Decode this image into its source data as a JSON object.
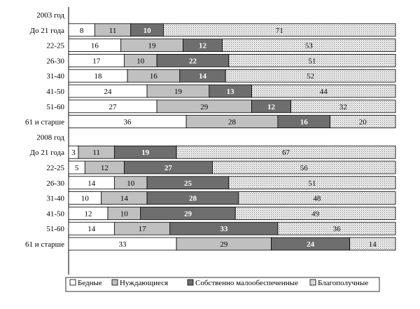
{
  "colors": {
    "poor": "#ffffff",
    "needy": "#c0c0c0",
    "low_income": "#6e6e6e",
    "well_off": "#f0f0f0",
    "border": "#000000"
  },
  "chart_data": {
    "type": "bar",
    "orientation": "horizontal",
    "stacked": "percent",
    "series": [
      {
        "name": "Бедные",
        "color_key": "poor"
      },
      {
        "name": "Нуждающиеся",
        "color_key": "needy"
      },
      {
        "name": "Собственно малообеспеченные",
        "color_key": "low_income"
      },
      {
        "name": "Благополучные",
        "color_key": "well_off"
      }
    ],
    "groups": [
      {
        "label": "2003 год",
        "rows": [
          {
            "category": "До 21 года",
            "values": [
              8,
              11,
              10,
              71
            ]
          },
          {
            "category": "22-25",
            "values": [
              16,
              19,
              12,
              53
            ]
          },
          {
            "category": "26-30",
            "values": [
              17,
              10,
              22,
              51
            ]
          },
          {
            "category": "31-40",
            "values": [
              18,
              16,
              14,
              52
            ]
          },
          {
            "category": "41-50",
            "values": [
              24,
              19,
              13,
              44
            ]
          },
          {
            "category": "51-60",
            "values": [
              27,
              29,
              12,
              32
            ]
          },
          {
            "category": "61 и старше",
            "values": [
              36,
              28,
              16,
              20
            ]
          }
        ]
      },
      {
        "label": "2008 год",
        "rows": [
          {
            "category": "До 21 года",
            "values": [
              3,
              11,
              19,
              67
            ]
          },
          {
            "category": "22-25",
            "values": [
              5,
              12,
              27,
              56
            ]
          },
          {
            "category": "26-30",
            "values": [
              14,
              10,
              25,
              51
            ]
          },
          {
            "category": "31-40",
            "values": [
              10,
              14,
              28,
              48
            ]
          },
          {
            "category": "41-50",
            "values": [
              12,
              10,
              29,
              49
            ]
          },
          {
            "category": "51-60",
            "values": [
              14,
              17,
              33,
              36
            ]
          },
          {
            "category": "61 и старше",
            "values": [
              33,
              29,
              24,
              14
            ]
          }
        ]
      }
    ],
    "xlim": [
      0,
      100
    ],
    "legend_position": "bottom",
    "grid": false
  }
}
